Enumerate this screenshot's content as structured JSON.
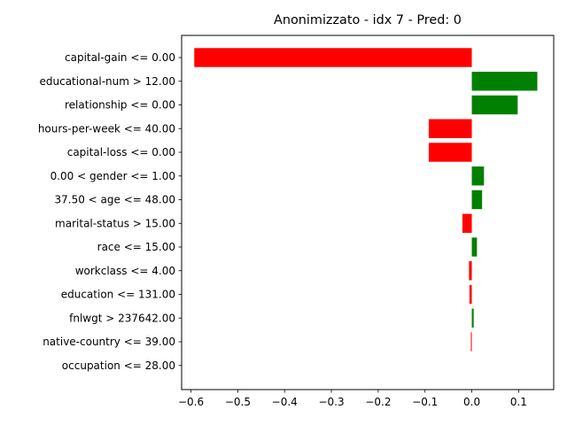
{
  "chart_data": {
    "type": "bar",
    "orientation": "horizontal",
    "title": "Anonimizzato - idx 7 - Pred: 0",
    "xlabel": "",
    "ylabel": "",
    "xlim": [
      -0.62,
      0.175
    ],
    "xticks": [
      -0.6,
      -0.5,
      -0.4,
      -0.3,
      -0.2,
      -0.1,
      0.0,
      0.1
    ],
    "xtick_labels": [
      "−0.6",
      "−0.5",
      "−0.4",
      "−0.3",
      "−0.2",
      "−0.1",
      "0.0",
      "0.1"
    ],
    "grid": false,
    "categories": [
      "capital-gain <= 0.00",
      "educational-num > 12.00",
      "relationship <= 0.00",
      "hours-per-week <= 40.00",
      "capital-loss <= 0.00",
      "0.00 < gender <= 1.00",
      "37.50 < age <= 48.00",
      "marital-status > 15.00",
      "race <= 15.00",
      "workclass <= 4.00",
      "education <= 131.00",
      "fnlwgt > 237642.00",
      "native-country <= 39.00",
      "occupation <= 28.00"
    ],
    "values": [
      -0.593,
      0.14,
      0.098,
      -0.092,
      -0.092,
      0.026,
      0.022,
      -0.02,
      0.011,
      -0.006,
      -0.005,
      0.004,
      -0.002,
      0.0
    ],
    "colors": {
      "positive": "#008000",
      "negative": "#ff0000"
    }
  }
}
